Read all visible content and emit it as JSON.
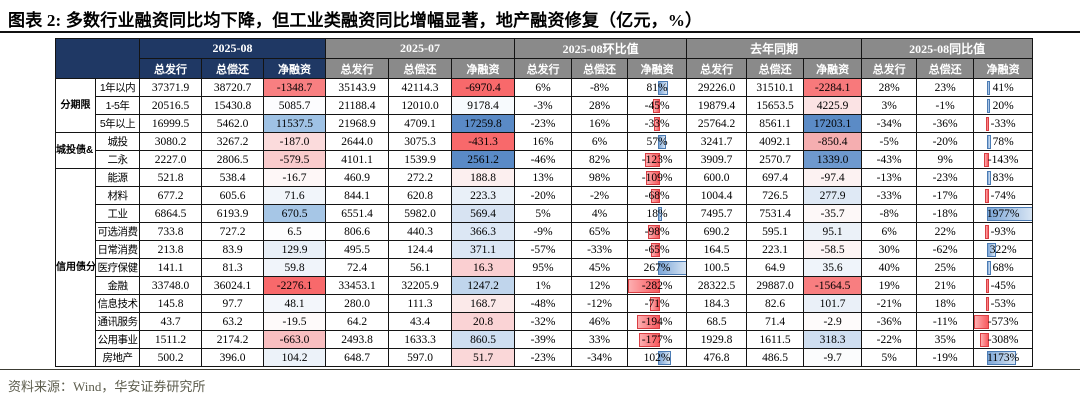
{
  "title": "图表 2: 多数行业融资同比均下降，但工业类融资同比增幅显著，地产融资修复（亿元，%）",
  "source_note": "资料来源：Wind，华安证券研究所",
  "colors": {
    "header_primary": "#1F3864",
    "header_secondary": "#8a8a8a",
    "scale_min_red": "#F8696B",
    "scale_max_blue": "#5A8AC6",
    "bar_positive": "#638EC6",
    "bar_negative": "#FF4B4E"
  },
  "table": {
    "column_groups": [
      {
        "label": "2025-08",
        "theme": "navy"
      },
      {
        "label": "2025-07",
        "theme": "gray"
      },
      {
        "label": "2025-08环比值",
        "theme": "gray"
      },
      {
        "label": "去年同期",
        "theme": "gray"
      },
      {
        "label": "2025-08同比值",
        "theme": "gray"
      }
    ],
    "sub_columns": [
      "总发行",
      "总偿还",
      "净融资"
    ],
    "fill_columns": [
      2,
      5,
      11
    ],
    "bar_columns": [
      8,
      14
    ],
    "row_groups": [
      {
        "label": "分期限",
        "rows": [
          {
            "label": "1年以内",
            "values": [
              "37371.9",
              "38720.7",
              "-1348.7",
              "35143.9",
              "42114.3",
              "-6970.4",
              "6%",
              "-8%",
              "81%",
              "29226.0",
              "31510.1",
              "-2284.1",
              "28%",
              "23%",
              "41%"
            ],
            "net_fill": [
              "#F87F81",
              "#F8696B",
              "#F8797B"
            ]
          },
          {
            "label": "1-5年",
            "values": [
              "20516.5",
              "15430.8",
              "5085.7",
              "21188.4",
              "12010.0",
              "9178.4",
              "-3%",
              "28%",
              "-45%",
              "19879.4",
              "15653.5",
              "4225.9",
              "3%",
              "-1%",
              "20%"
            ],
            "net_fill": [
              "#FCFCFE",
              "#F7FAFD",
              "#FBE3E4"
            ]
          },
          {
            "label": "5年以上",
            "values": [
              "16999.5",
              "5462.0",
              "11537.5",
              "21968.9",
              "4709.1",
              "17259.8",
              "-23%",
              "16%",
              "-33%",
              "25764.2",
              "8561.1",
              "17203.1",
              "-34%",
              "-36%",
              "-33%"
            ],
            "net_fill": [
              "#9FC2E5",
              "#5A8AC6",
              "#5B8BC6"
            ]
          }
        ]
      },
      {
        "label": "城投债&\n二永债",
        "rows": [
          {
            "label": "城投",
            "values": [
              "3080.2",
              "3267.2",
              "-187.0",
              "2644.0",
              "3075.3",
              "-431.3",
              "16%",
              "6%",
              "57%",
              "3241.7",
              "4092.1",
              "-850.4",
              "-5%",
              "-20%",
              "78%"
            ],
            "net_fill": [
              "#FBDBDC",
              "#F8696B",
              "#F5AEB0"
            ]
          },
          {
            "label": "二永",
            "values": [
              "2227.0",
              "2806.5",
              "-579.5",
              "4101.1",
              "1539.9",
              "2561.2",
              "-46%",
              "82%",
              "-123%",
              "3909.7",
              "2570.7",
              "1339.0",
              "-43%",
              "9%",
              "-143%"
            ],
            "net_fill": [
              "#FACBCC",
              "#5A8AC6",
              "#6E99CE"
            ]
          }
        ]
      },
      {
        "label": "信用债分\n行业\n(wind\n新)",
        "rows": [
          {
            "label": "能源",
            "values": [
              "521.8",
              "538.4",
              "-16.7",
              "460.9",
              "272.2",
              "188.8",
              "13%",
              "98%",
              "-109%",
              "600.0",
              "697.4",
              "-97.4",
              "-13%",
              "-23%",
              "83%"
            ],
            "net_fill": [
              "#FEF7F7",
              "#FCEFEF",
              "#FCF2F2"
            ]
          },
          {
            "label": "材料",
            "values": [
              "677.2",
              "605.6",
              "71.6",
              "844.1",
              "620.8",
              "223.3",
              "-20%",
              "-2%",
              "-68%",
              "1004.4",
              "726.5",
              "277.9",
              "-33%",
              "-17%",
              "-74%"
            ],
            "net_fill": [
              "#F1F5FA",
              "#E9F0F8",
              "#DFE9F5"
            ]
          },
          {
            "label": "工业",
            "values": [
              "6864.5",
              "6193.9",
              "670.5",
              "6551.4",
              "5982.0",
              "569.4",
              "5%",
              "4%",
              "18%",
              "7495.7",
              "7531.4",
              "-35.7",
              "-8%",
              "-18%",
              "1977%"
            ],
            "net_fill": [
              "#A6C6E6",
              "#D7E3F2",
              "#FDF8F8"
            ]
          },
          {
            "label": "可选消费",
            "values": [
              "733.8",
              "727.2",
              "6.5",
              "806.6",
              "440.3",
              "366.3",
              "-9%",
              "65%",
              "-98%",
              "690.2",
              "595.1",
              "95.1",
              "6%",
              "22%",
              "-93%"
            ],
            "net_fill": [
              "#FDFDFE",
              "#DCE7F4",
              "#EBF1F8"
            ]
          },
          {
            "label": "日常消费",
            "values": [
              "213.8",
              "83.9",
              "129.9",
              "495.5",
              "124.4",
              "371.1",
              "-57%",
              "-33%",
              "-65%",
              "164.5",
              "223.1",
              "-58.5",
              "30%",
              "-62%",
              "322%"
            ],
            "net_fill": [
              "#E8EFF7",
              "#DBE6F4",
              "#FDF4F4"
            ]
          },
          {
            "label": "医疗保健",
            "values": [
              "141.1",
              "81.3",
              "59.8",
              "72.4",
              "56.1",
              "16.3",
              "95%",
              "45%",
              "267%",
              "100.5",
              "64.9",
              "35.6",
              "40%",
              "25%",
              "68%"
            ],
            "net_fill": [
              "#F0F4FA",
              "#FACFD1",
              "#EFF4FA"
            ]
          },
          {
            "label": "金融",
            "values": [
              "33748.0",
              "36024.1",
              "-2276.1",
              "33453.1",
              "32205.9",
              "1247.2",
              "1%",
              "12%",
              "-282%",
              "28322.5",
              "29887.0",
              "-1564.5",
              "19%",
              "21%",
              "-45%"
            ],
            "net_fill": [
              "#F8696B",
              "#C0D5EC",
              "#F87E80"
            ]
          },
          {
            "label": "信息技术",
            "values": [
              "145.8",
              "97.7",
              "48.1",
              "280.0",
              "111.3",
              "168.7",
              "-48%",
              "-12%",
              "-71%",
              "184.3",
              "82.6",
              "101.7",
              "-21%",
              "18%",
              "-53%"
            ],
            "net_fill": [
              "#F3F6FB",
              "#FBE9E9",
              "#EAF0F8"
            ]
          },
          {
            "label": "通讯服务",
            "values": [
              "43.7",
              "63.2",
              "-19.5",
              "64.2",
              "43.4",
              "20.8",
              "-32%",
              "46%",
              "-194%",
              "68.5",
              "71.4",
              "-2.9",
              "-36%",
              "-11%",
              "-573%"
            ],
            "net_fill": [
              "#FEFAFA",
              "#FAD3D5",
              "#FEFBFB"
            ]
          },
          {
            "label": "公用事业",
            "values": [
              "1511.2",
              "2174.2",
              "-663.0",
              "2493.8",
              "1633.3",
              "860.5",
              "-39%",
              "33%",
              "-177%",
              "1929.8",
              "1611.5",
              "318.3",
              "-22%",
              "35%",
              "-308%"
            ],
            "net_fill": [
              "#F9BEC0",
              "#CEDEF0",
              "#CFDEF0"
            ]
          },
          {
            "label": "房地产",
            "values": [
              "500.2",
              "396.0",
              "104.2",
              "648.7",
              "597.0",
              "51.7",
              "-23%",
              "-34%",
              "102%",
              "476.8",
              "486.5",
              "-9.7",
              "5%",
              "-19%",
              "1173%"
            ],
            "net_fill": [
              "#ECF2F9",
              "#FAD7D8",
              "#FBFCFD"
            ]
          }
        ]
      }
    ]
  }
}
